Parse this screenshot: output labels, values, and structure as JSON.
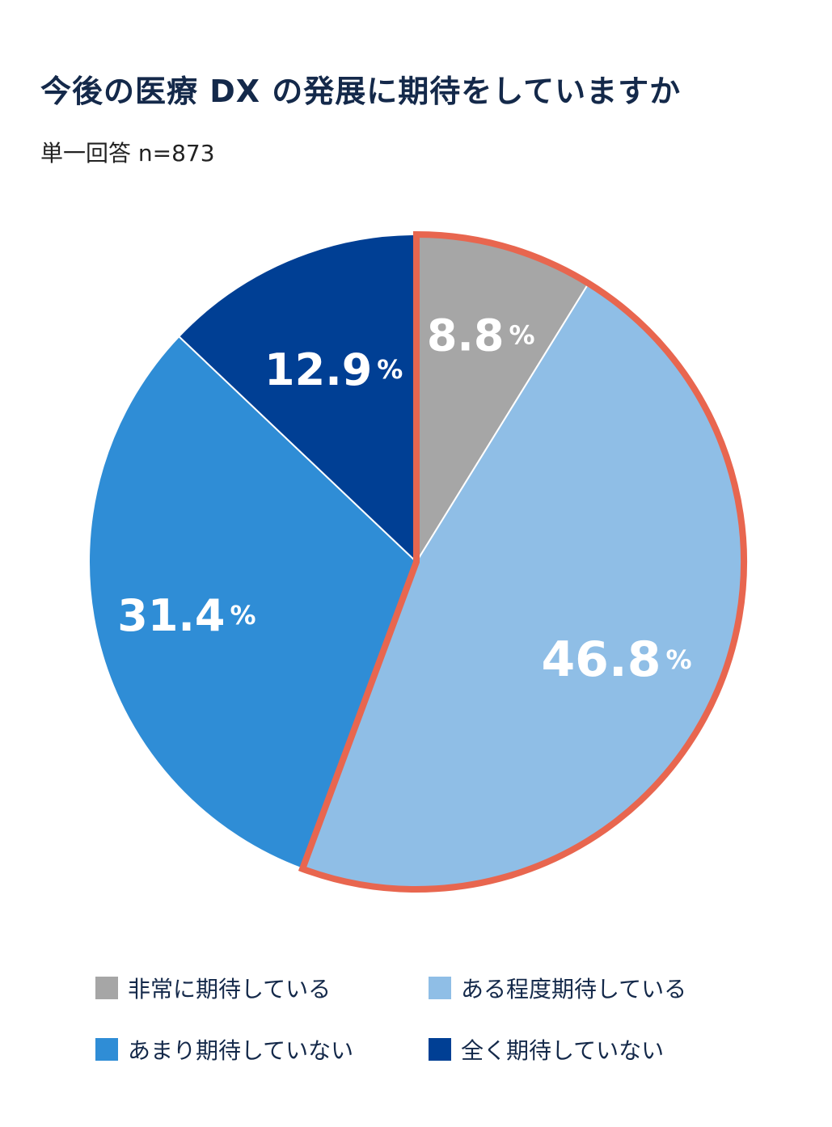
{
  "header": {
    "title": "今後の医療 DX の発展に期待をしていますか",
    "subtitle": "単一回答 n=873"
  },
  "chart_data": {
    "type": "pie",
    "title": "今後の医療 DX の発展に期待をしていますか",
    "subtitle": "単一回答 n=873",
    "unit": "%",
    "slices": [
      {
        "name": "非常に期待している",
        "value": 8.8,
        "label": "8.8",
        "color": "#a6a6a6",
        "highlight": true
      },
      {
        "name": "ある程度期待している",
        "value": 46.8,
        "label": "46.8",
        "color": "#8fbee6",
        "highlight": true
      },
      {
        "name": "あまり期待していない",
        "value": 31.4,
        "label": "31.4",
        "color": "#2f8dd6",
        "highlight": false
      },
      {
        "name": "全く期待していない",
        "value": 12.9,
        "label": "12.9",
        "color": "#003f94",
        "highlight": false
      }
    ],
    "highlight_color": "#e8664f",
    "legend_position": "bottom"
  }
}
